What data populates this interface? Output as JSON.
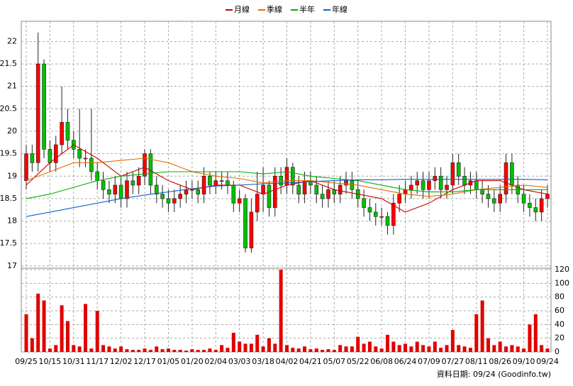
{
  "chart_data": {
    "type": "candlestick",
    "legend": "top",
    "x_labels": [
      "09/25",
      "10/15",
      "10/31",
      "11/17",
      "12/02",
      "12/17",
      "01/05",
      "01/20",
      "02/04",
      "03/03",
      "03/18",
      "04/02",
      "04/21",
      "05/07",
      "05/22",
      "06/08",
      "06/24",
      "07/09",
      "07/27",
      "08/11",
      "08/26",
      "09/10",
      "09/24"
    ],
    "footer": "資料日期: 09/24  (Goodinfo.tw)",
    "up_color": "#ff0000",
    "down_color": "#00c000",
    "volume_color": "#e00000",
    "ylim": [
      16.95,
      22.45
    ],
    "yticks": [
      17,
      17.5,
      18,
      18.5,
      19,
      19.5,
      20,
      20.5,
      21,
      21.5,
      22
    ],
    "y2lim": [
      0,
      120
    ],
    "y2ticks": [
      0,
      20,
      40,
      60,
      80,
      100,
      120
    ],
    "grid": true,
    "open": [
      18.9,
      19.5,
      19.3,
      21.5,
      19.6,
      19.3,
      19.7,
      20.2,
      19.8,
      19.6,
      19.4,
      19.4,
      19.1,
      18.9,
      18.7,
      18.6,
      18.8,
      18.5,
      18.9,
      18.8,
      19.0,
      19.5,
      18.8,
      18.6,
      18.5,
      18.4,
      18.5,
      18.6,
      18.7,
      18.7,
      18.6,
      19.0,
      18.8,
      18.9,
      18.9,
      18.8,
      18.4,
      18.5,
      17.4,
      18.2,
      18.6,
      18.8,
      18.3,
      19.0,
      18.8,
      19.2,
      18.8,
      18.6,
      18.9,
      18.8,
      18.6,
      18.5,
      18.7,
      18.6,
      18.8,
      18.9,
      18.7,
      18.5,
      18.3,
      18.2,
      18.1,
      18.1,
      17.9,
      18.4,
      18.6,
      18.7,
      18.8,
      18.9,
      18.7,
      18.9,
      19.0,
      18.7,
      18.8,
      19.3,
      19.0,
      18.8,
      18.9,
      18.7,
      18.6,
      18.5,
      18.4,
      18.6,
      19.3,
      18.8,
      18.6,
      18.4,
      18.3,
      18.2,
      18.5
    ],
    "high": [
      19.7,
      19.7,
      22.2,
      21.6,
      19.8,
      19.9,
      21.0,
      20.5,
      20.0,
      20.5,
      19.6,
      20.5,
      19.3,
      19.1,
      18.9,
      19.0,
      19.0,
      19.1,
      19.1,
      19.2,
      19.6,
      19.6,
      19.0,
      18.8,
      18.7,
      18.7,
      18.8,
      18.9,
      18.9,
      18.9,
      19.2,
      19.1,
      19.1,
      19.1,
      19.1,
      18.9,
      18.7,
      18.6,
      18.5,
      19.1,
      19.2,
      18.9,
      19.2,
      19.2,
      19.4,
      19.3,
      19.0,
      19.1,
      19.1,
      19.0,
      18.8,
      18.9,
      18.9,
      19.0,
      19.1,
      19.1,
      18.9,
      18.7,
      18.5,
      18.4,
      18.3,
      18.2,
      18.6,
      18.8,
      18.9,
      19.0,
      19.1,
      19.1,
      19.1,
      19.2,
      19.2,
      19.0,
      19.5,
      19.5,
      19.2,
      19.1,
      19.1,
      18.9,
      18.8,
      18.7,
      18.8,
      19.5,
      19.5,
      19.0,
      18.8,
      18.6,
      18.5,
      18.7,
      18.8
    ],
    "low": [
      18.7,
      19.1,
      19.1,
      19.4,
      19.1,
      19.1,
      19.5,
      19.6,
      19.4,
      19.2,
      19.2,
      18.9,
      18.7,
      18.5,
      18.4,
      18.4,
      18.3,
      18.3,
      18.6,
      18.6,
      18.8,
      18.6,
      18.4,
      18.3,
      18.2,
      18.2,
      18.3,
      18.4,
      18.5,
      18.4,
      18.4,
      18.6,
      18.6,
      18.7,
      18.6,
      18.2,
      18.2,
      17.3,
      17.3,
      18.0,
      18.2,
      18.1,
      18.1,
      18.6,
      18.6,
      18.6,
      18.4,
      18.4,
      18.6,
      18.4,
      18.3,
      18.3,
      18.4,
      18.4,
      18.6,
      18.5,
      18.3,
      18.1,
      18.0,
      17.9,
      17.9,
      17.7,
      17.7,
      18.2,
      18.4,
      18.5,
      18.6,
      18.5,
      18.5,
      18.7,
      18.5,
      18.5,
      18.6,
      18.8,
      18.6,
      18.6,
      18.5,
      18.4,
      18.3,
      18.2,
      18.2,
      18.4,
      18.6,
      18.4,
      18.2,
      18.1,
      18.0,
      18.0,
      18.3
    ],
    "close": [
      19.5,
      19.3,
      21.5,
      19.6,
      19.3,
      19.7,
      20.2,
      19.8,
      19.6,
      19.4,
      19.4,
      19.1,
      18.9,
      18.7,
      18.6,
      18.8,
      18.5,
      18.9,
      18.8,
      19.0,
      19.5,
      18.8,
      18.6,
      18.5,
      18.4,
      18.5,
      18.6,
      18.7,
      18.7,
      18.6,
      19.0,
      18.8,
      18.9,
      18.9,
      18.8,
      18.4,
      18.5,
      17.4,
      18.2,
      18.6,
      18.8,
      18.3,
      19.0,
      18.8,
      19.2,
      18.8,
      18.6,
      18.9,
      18.8,
      18.6,
      18.5,
      18.7,
      18.6,
      18.8,
      18.9,
      18.7,
      18.5,
      18.3,
      18.2,
      18.1,
      18.1,
      17.9,
      18.4,
      18.6,
      18.7,
      18.8,
      18.9,
      18.7,
      18.9,
      19.0,
      18.7,
      18.8,
      19.3,
      19.0,
      18.8,
      18.9,
      18.7,
      18.6,
      18.5,
      18.4,
      18.6,
      19.3,
      18.8,
      18.6,
      18.4,
      18.3,
      18.2,
      18.5,
      18.6
    ],
    "volume": [
      55,
      20,
      85,
      75,
      5,
      10,
      68,
      45,
      10,
      8,
      70,
      5,
      60,
      10,
      8,
      5,
      8,
      4,
      3,
      3,
      5,
      3,
      8,
      4,
      5,
      3,
      3,
      2,
      4,
      3,
      3,
      5,
      3,
      10,
      6,
      28,
      15,
      12,
      12,
      25,
      8,
      20,
      12,
      120,
      10,
      6,
      5,
      8,
      4,
      5,
      3,
      4,
      3,
      10,
      8,
      8,
      22,
      12,
      15,
      8,
      5,
      25,
      15,
      10,
      12,
      8,
      15,
      10,
      8,
      15,
      6,
      10,
      32,
      10,
      8,
      6,
      55,
      75,
      20,
      10,
      15,
      8,
      10,
      8,
      5,
      40,
      55,
      10,
      5
    ],
    "ma_x": [
      0,
      4,
      8,
      12,
      16,
      20,
      24,
      28,
      32,
      36,
      40,
      44,
      48,
      52,
      56,
      60,
      64,
      68,
      72,
      76,
      80,
      84,
      88
    ],
    "series": [
      {
        "name": "月線",
        "color": "#d00000",
        "values": [
          18.8,
          19.3,
          19.7,
          19.4,
          19.0,
          19.2,
          18.9,
          18.7,
          18.8,
          18.8,
          18.6,
          18.8,
          18.9,
          18.7,
          18.6,
          18.5,
          18.2,
          18.4,
          18.7,
          18.9,
          18.9,
          18.7,
          18.6
        ]
      },
      {
        "name": "季線",
        "color": "#e07000",
        "values": [
          18.9,
          19.1,
          19.3,
          19.3,
          19.35,
          19.4,
          19.3,
          19.1,
          19.0,
          18.95,
          18.85,
          18.9,
          18.9,
          18.85,
          18.8,
          18.7,
          18.6,
          18.55,
          18.6,
          18.7,
          18.75,
          18.8,
          18.75
        ]
      },
      {
        "name": "半年",
        "color": "#00b000",
        "values": [
          18.5,
          18.6,
          18.75,
          18.9,
          19.0,
          19.05,
          19.1,
          19.1,
          19.1,
          19.1,
          19.05,
          19.1,
          19.0,
          18.95,
          18.9,
          18.8,
          18.7,
          18.65,
          18.65,
          18.7,
          18.7,
          18.7,
          18.7
        ]
      },
      {
        "name": "年線",
        "color": "#1060d0",
        "values": [
          18.1,
          18.2,
          18.3,
          18.4,
          18.5,
          18.58,
          18.65,
          18.72,
          18.78,
          18.8,
          18.83,
          18.85,
          18.88,
          18.9,
          18.92,
          18.92,
          18.93,
          18.93,
          18.93,
          18.93,
          18.93,
          18.93,
          18.92
        ]
      }
    ]
  }
}
